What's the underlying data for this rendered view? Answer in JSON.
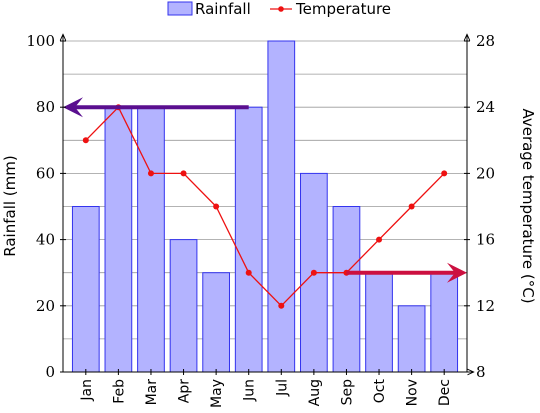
{
  "chart_data": {
    "type": "bar+line",
    "categories": [
      "Jan",
      "Feb",
      "Mar",
      "Apr",
      "May",
      "Jun",
      "Jul",
      "Aug",
      "Sep",
      "Oct",
      "Nov",
      "Dec"
    ],
    "series": [
      {
        "name": "Rainfall",
        "type": "bar",
        "axis": "left",
        "values": [
          50,
          80,
          80,
          40,
          30,
          80,
          100,
          60,
          50,
          30,
          20,
          30
        ]
      },
      {
        "name": "Temperature",
        "type": "line",
        "axis": "right",
        "values": [
          22,
          24,
          20,
          20,
          18,
          14,
          12,
          14,
          14,
          16,
          18,
          20
        ]
      }
    ],
    "ylabel": "Rainfall (mm)",
    "y2label": "Average temperature (°C)",
    "ylim": [
      0,
      100
    ],
    "y2lim": [
      8,
      28
    ],
    "yticks": [
      0,
      20,
      40,
      60,
      80,
      100
    ],
    "y2ticks": [
      8,
      12,
      16,
      20,
      24,
      28
    ],
    "grid": "horizontal",
    "legend": "top-center",
    "annotations": [
      {
        "type": "arrow",
        "direction": "left",
        "y": 80,
        "axis": "left",
        "from_category": "Jun",
        "color": "#5a0f8f"
      },
      {
        "type": "arrow",
        "direction": "right",
        "y": 14,
        "axis": "right",
        "from_category": "Sep",
        "color": "#cc1040"
      }
    ],
    "colors": {
      "bar_fill": "#b3b3ff",
      "bar_stroke": "#3333ee",
      "line": "#ee1111"
    }
  }
}
